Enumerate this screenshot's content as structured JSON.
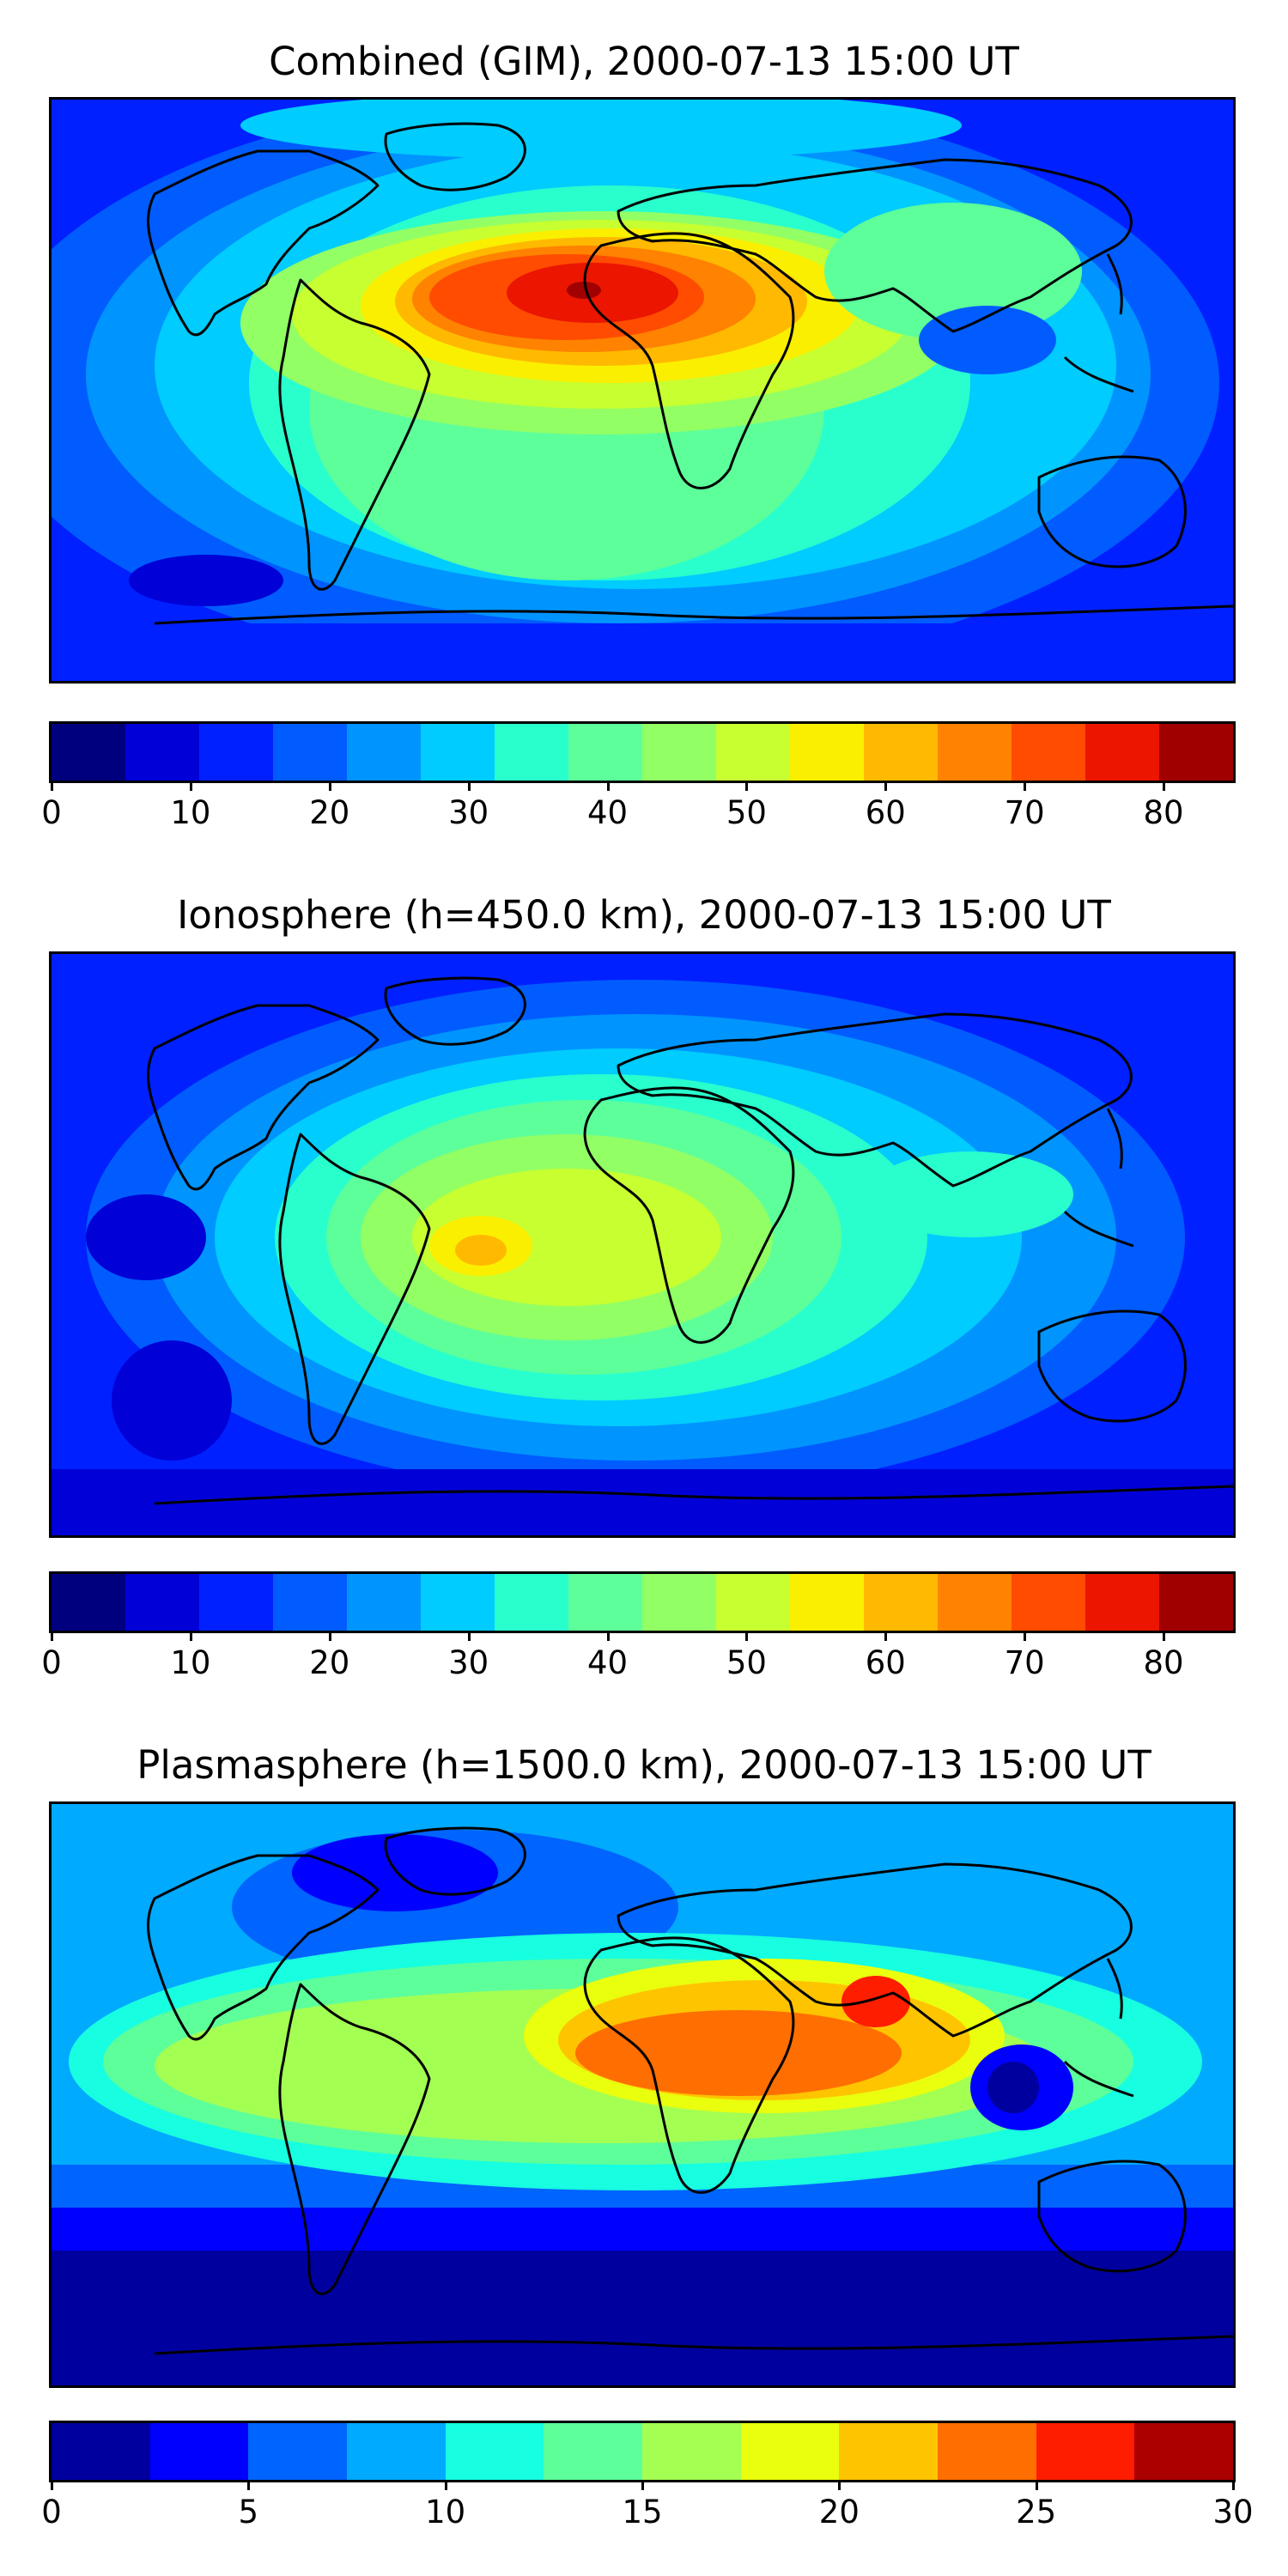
{
  "panels": [
    {
      "title": "Combined (GIM), 2000-07-13 15:00 UT",
      "colorbar": {
        "ticks": [
          "0",
          "10",
          "20",
          "30",
          "40",
          "50",
          "60",
          "70",
          "80"
        ],
        "tick_values": [
          0,
          10,
          20,
          30,
          40,
          50,
          60,
          70,
          80
        ],
        "min": 0,
        "max": 85,
        "colors": [
          "#00007f",
          "#0000d7",
          "#0020ff",
          "#005cff",
          "#0094ff",
          "#00ccff",
          "#29ffcd",
          "#5dff9a",
          "#92ff65",
          "#c7ff30",
          "#fbef00",
          "#ffb900",
          "#ff8200",
          "#ff4c00",
          "#eb1500",
          "#a00000"
        ]
      }
    },
    {
      "title": "Ionosphere  (h=450.0 km), 2000-07-13 15:00 UT",
      "colorbar": {
        "ticks": [
          "0",
          "10",
          "20",
          "30",
          "40",
          "50",
          "60",
          "70",
          "80"
        ],
        "tick_values": [
          0,
          10,
          20,
          30,
          40,
          50,
          60,
          70,
          80
        ],
        "min": 0,
        "max": 85,
        "colors": [
          "#00007f",
          "#0000d7",
          "#0020ff",
          "#005cff",
          "#0094ff",
          "#00ccff",
          "#29ffcd",
          "#5dff9a",
          "#92ff65",
          "#c7ff30",
          "#fbef00",
          "#ffb900",
          "#ff8200",
          "#ff4c00",
          "#eb1500",
          "#a00000"
        ]
      }
    },
    {
      "title": "Plasmasphere (h=1500.0 km), 2000-07-13 15:00 UT",
      "colorbar": {
        "ticks": [
          "0",
          "5",
          "10",
          "15",
          "20",
          "25",
          "30"
        ],
        "tick_values": [
          0,
          5,
          10,
          15,
          20,
          25,
          30
        ],
        "min": 0,
        "max": 30,
        "colors": [
          "#00009f",
          "#0000ff",
          "#0064ff",
          "#00aaff",
          "#17ffe0",
          "#5dff9a",
          "#a4ff53",
          "#e9ff0d",
          "#ffc400",
          "#ff6e00",
          "#ff1d00",
          "#aa0000"
        ]
      }
    }
  ]
}
